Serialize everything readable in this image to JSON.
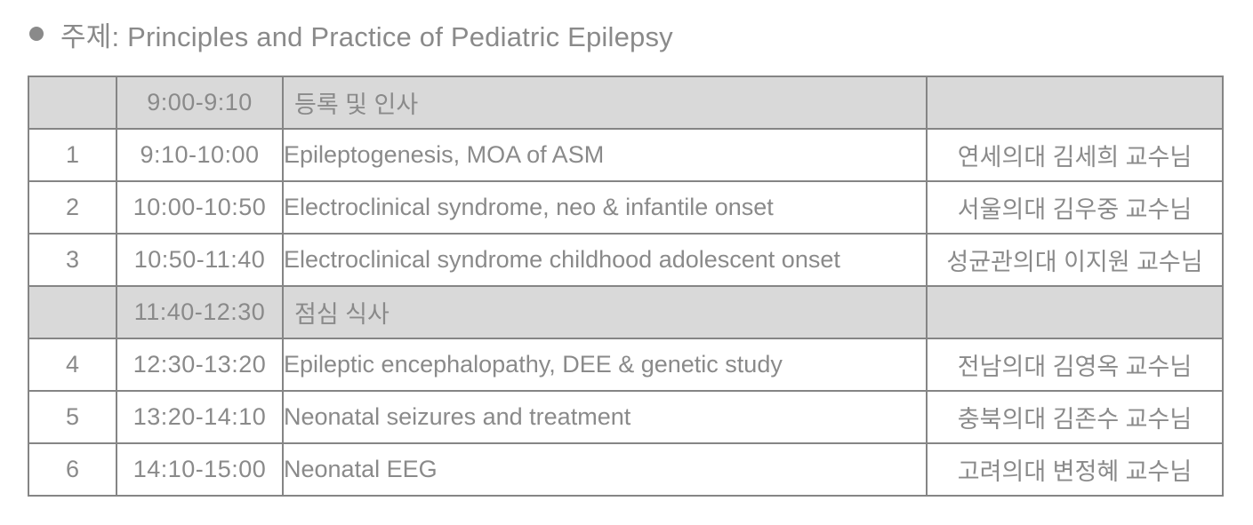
{
  "page": {
    "bullet": "",
    "title": "주제: Principles and Practice of Pediatric Epilepsy"
  },
  "colors": {
    "text_gray": "#8a8a8a",
    "border_gray": "#858585",
    "band_background": "#d9d9d9",
    "page_background": "#ffffff"
  },
  "table": {
    "rows": [
      {
        "num": "",
        "time": "9:00-9:10",
        "topic": "등록 및 인사",
        "speaker": "",
        "band": true
      },
      {
        "num": "1",
        "time": "9:10-10:00",
        "topic": "Epileptogenesis, MOA of ASM",
        "speaker": "연세의대 김세희 교수님",
        "band": false
      },
      {
        "num": "2",
        "time": "10:00-10:50",
        "topic": "Electroclinical syndrome, neo & infantile onset",
        "speaker": "서울의대 김우중 교수님",
        "band": false
      },
      {
        "num": "3",
        "time": "10:50-11:40",
        "topic": "Electroclinical syndrome childhood adolescent onset",
        "speaker": "성균관의대 이지원 교수님",
        "band": false
      },
      {
        "num": "",
        "time": "11:40-12:30",
        "topic": "점심 식사",
        "speaker": "",
        "band": true
      },
      {
        "num": "4",
        "time": "12:30-13:20",
        "topic": "Epileptic encephalopathy, DEE & genetic study",
        "speaker": "전남의대 김영옥 교수님",
        "band": false
      },
      {
        "num": "5",
        "time": "13:20-14:10",
        "topic": "Neonatal seizures and treatment",
        "speaker": "충북의대 김존수 교수님",
        "band": false
      },
      {
        "num": "6",
        "time": "14:10-15:00",
        "topic": "Neonatal EEG",
        "speaker": "고려의대 변정혜 교수님",
        "band": false
      }
    ]
  }
}
